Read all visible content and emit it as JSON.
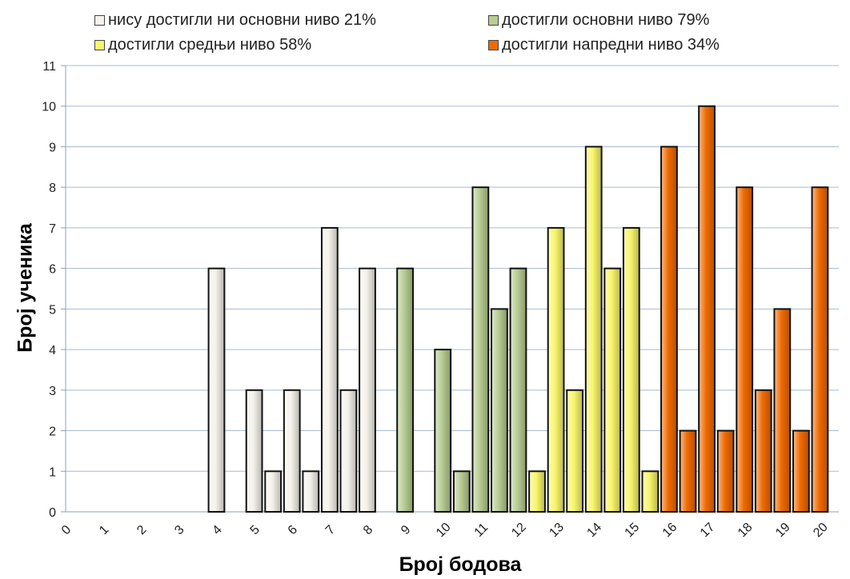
{
  "chart_data": {
    "type": "bar",
    "xlabel": "Број бодова",
    "ylabel": "Број ученика",
    "ylim": [
      0,
      11
    ],
    "y_ticks": [
      "0",
      "1",
      "2",
      "3",
      "4",
      "5",
      "6",
      "7",
      "8",
      "9",
      "10",
      "11"
    ],
    "x_tick_labels": [
      "0",
      "1",
      "2",
      "3",
      "4",
      "5",
      "6",
      "7",
      "8",
      "9",
      "10",
      "11",
      "12",
      "13",
      "14",
      "15",
      "16",
      "17",
      "18",
      "19",
      "20"
    ],
    "grid": "horizontal",
    "legend_position": "top",
    "series": [
      {
        "name": "нису достигли ни основни ниво 21%",
        "color": "#f4f2ea",
        "points": [
          {
            "x": 4,
            "y": 6
          },
          {
            "x": 5,
            "y": 3
          },
          {
            "x": 5.5,
            "y": 1
          },
          {
            "x": 6,
            "y": 3
          },
          {
            "x": 6.5,
            "y": 1
          },
          {
            "x": 7,
            "y": 7
          },
          {
            "x": 7.5,
            "y": 3
          },
          {
            "x": 8,
            "y": 6
          }
        ]
      },
      {
        "name": "достигли основни ниво 79%",
        "color": "#b6cc91",
        "points": [
          {
            "x": 9,
            "y": 6
          },
          {
            "x": 10,
            "y": 4
          },
          {
            "x": 10.5,
            "y": 1
          },
          {
            "x": 11,
            "y": 8
          },
          {
            "x": 11.5,
            "y": 5
          },
          {
            "x": 12,
            "y": 6
          }
        ]
      },
      {
        "name": "достигли средњи ниво 58%",
        "color": "#f8f56a",
        "points": [
          {
            "x": 12.5,
            "y": 1
          },
          {
            "x": 13,
            "y": 7
          },
          {
            "x": 13.5,
            "y": 3
          },
          {
            "x": 14,
            "y": 9
          },
          {
            "x": 14.5,
            "y": 6
          },
          {
            "x": 15,
            "y": 7
          },
          {
            "x": 15.5,
            "y": 1
          }
        ]
      },
      {
        "name": "достигли напредни ниво 34%",
        "color": "#f06a00",
        "points": [
          {
            "x": 16,
            "y": 9
          },
          {
            "x": 16.5,
            "y": 2
          },
          {
            "x": 17,
            "y": 10
          },
          {
            "x": 17.5,
            "y": 2
          },
          {
            "x": 18,
            "y": 8
          },
          {
            "x": 18.5,
            "y": 3
          },
          {
            "x": 19,
            "y": 5
          },
          {
            "x": 19.5,
            "y": 2
          },
          {
            "x": 20,
            "y": 8
          }
        ]
      }
    ]
  }
}
